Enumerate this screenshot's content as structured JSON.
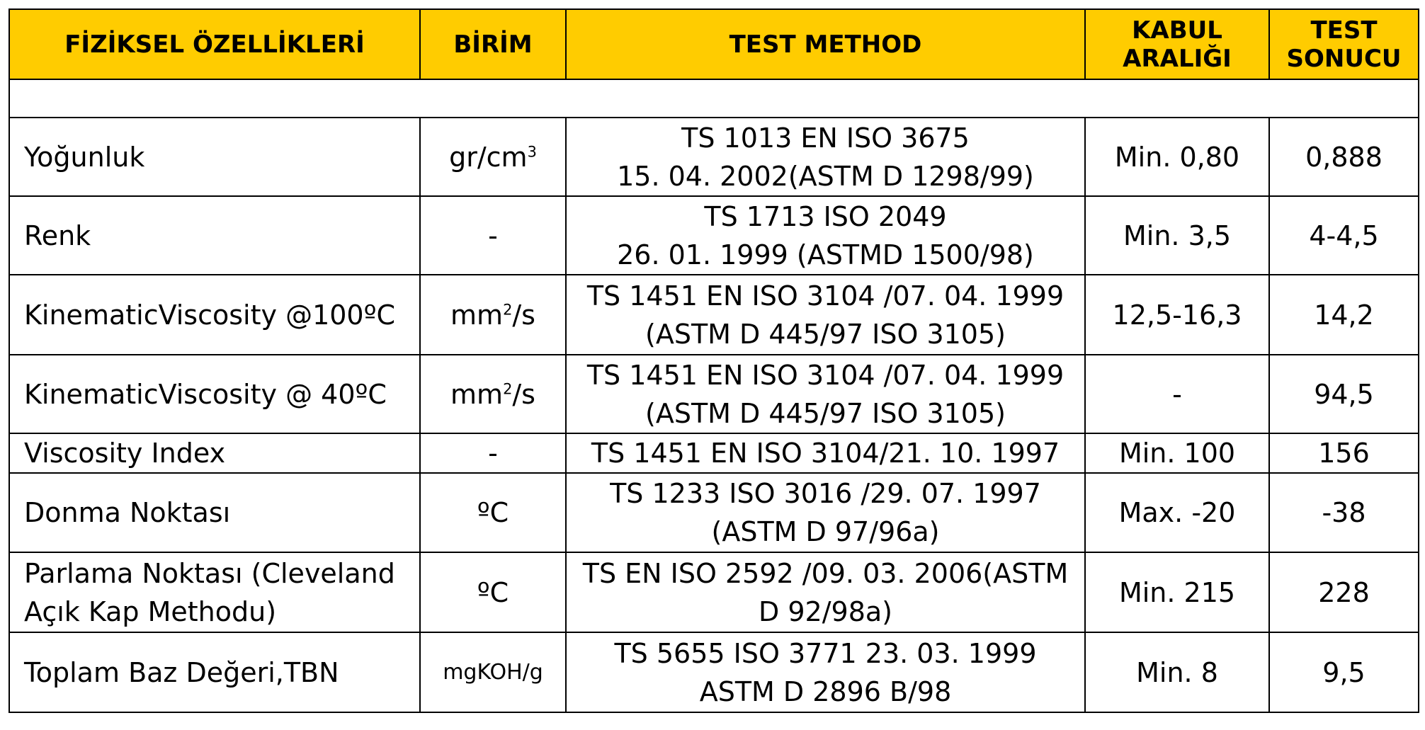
{
  "header": {
    "col1": "FİZİKSEL ÖZELLİKLERİ",
    "col2": "BİRİM",
    "col3": "TEST METHOD",
    "col4_line1": "KABUL",
    "col4_line2": "ARALIĞI",
    "col5_line1": "TEST",
    "col5_line2": "SONUCU"
  },
  "rows": [
    {
      "property": "Yoğunluk",
      "unit_base": "gr/cm",
      "unit_sup": "3",
      "unit_tail": "",
      "method_line1": "TS 1013 EN ISO 3675",
      "method_line2": "15. 04. 2002(ASTM D 1298/99)",
      "range": "Min. 0,80",
      "result": "0,888"
    },
    {
      "property": "Renk",
      "unit": "-",
      "method_line1": "TS 1713 ISO 2049",
      "method_line2": "26. 01. 1999 (ASTMD 1500/98)",
      "range": "Min. 3,5",
      "result": "4-4,5"
    },
    {
      "property": "KinematicViscosity @100ºC",
      "unit_base": "mm",
      "unit_sup": "2",
      "unit_tail": "/s",
      "method_line1": "TS 1451 EN ISO 3104 /07. 04. 1999",
      "method_line2": "(ASTM D 445/97 ISO 3105)",
      "range": "12,5-16,3",
      "result": "14,2"
    },
    {
      "property": "KinematicViscosity @ 40ºC",
      "unit_base": "mm",
      "unit_sup": "2",
      "unit_tail": "/s",
      "method_line1": "TS 1451 EN ISO 3104 /07. 04. 1999",
      "method_line2": "(ASTM D 445/97 ISO 3105)",
      "range": "-",
      "result": "94,5"
    },
    {
      "property": "Viscosity Index",
      "unit": "-",
      "method_line1": "TS 1451 EN ISO 3104/21. 10. 1997",
      "range": "Min. 100",
      "result": "156"
    },
    {
      "property": "Donma Noktası",
      "unit": "ºC",
      "method_line1": "TS 1233 ISO 3016 /29. 07. 1997",
      "method_line2": "(ASTM D 97/96a)",
      "range": "Max. -20",
      "result": "-38"
    },
    {
      "property_line1": "Parlama Noktası (Cleveland",
      "property_line2": "Açık Kap Methodu)",
      "unit": "ºC",
      "method_line1": "TS EN ISO 2592 /09. 03. 2006(ASTM",
      "method_line2": "D 92/98a)",
      "range": "Min. 215",
      "result": "228"
    },
    {
      "property": "Toplam Baz Değeri,TBN",
      "unit": "mgKOH/g",
      "method_line1": "TS 5655 ISO 3771 23. 03. 1999",
      "method_line2": "ASTM D 2896 B/98",
      "range": "Min. 8",
      "result": "9,5"
    }
  ]
}
